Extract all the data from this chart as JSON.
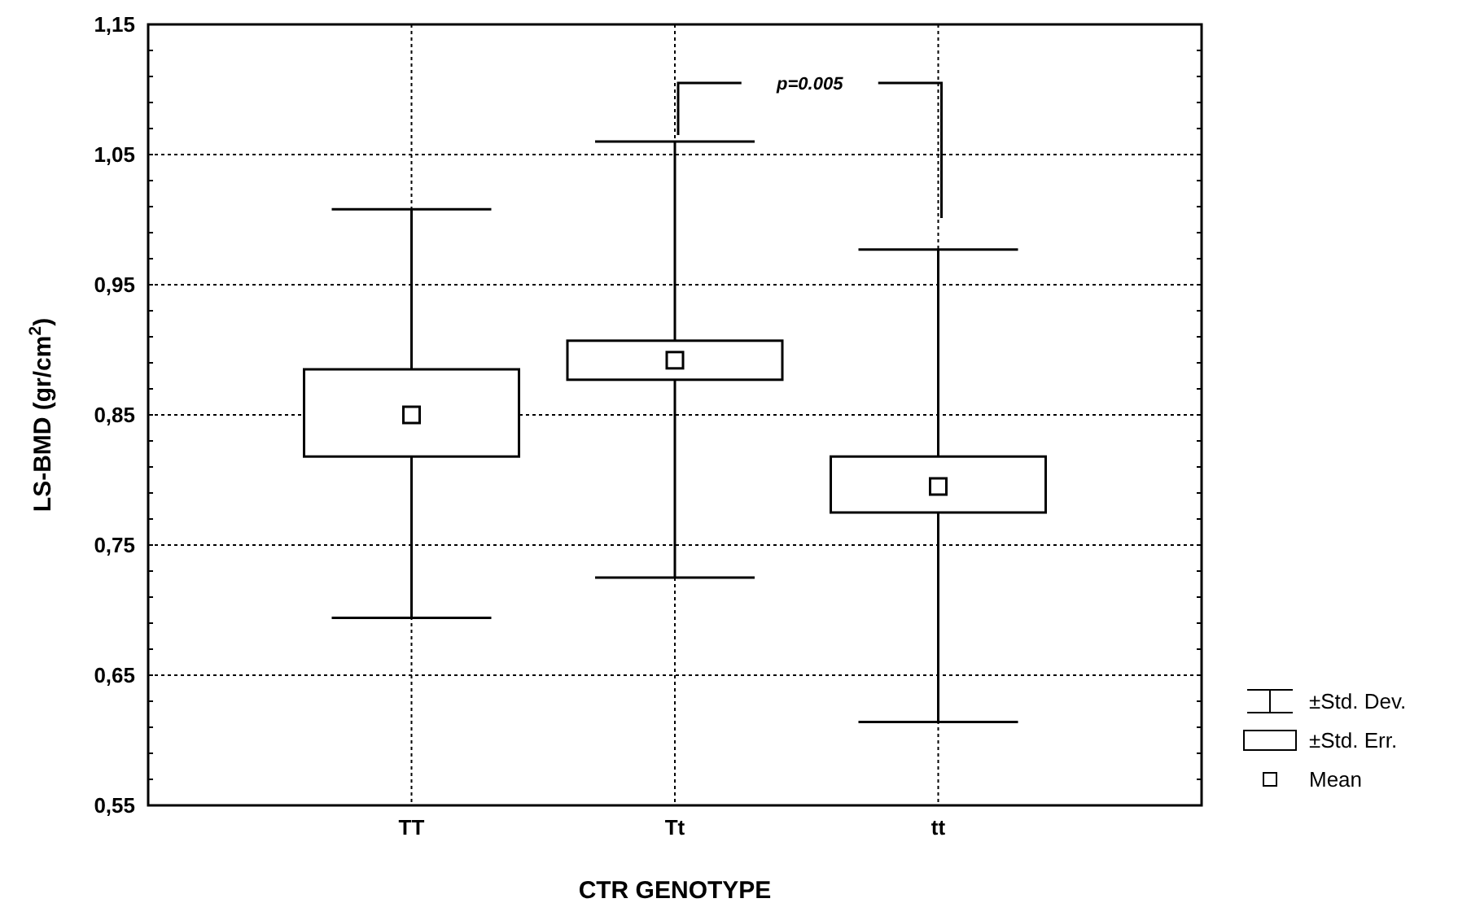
{
  "chart_data": {
    "type": "box",
    "xlabel": "CTR GENOTYPE",
    "ylabel": "LS-BMD (gr/cm$^{2}$)",
    "categories": [
      "TT",
      "Tt",
      "tt"
    ],
    "boxes": [
      {
        "low": 0.694,
        "q1": 0.818,
        "median": 0.85,
        "q3": 0.885,
        "high": 1.008
      },
      {
        "low": 0.725,
        "q1": 0.877,
        "median": 0.892,
        "q3": 0.907,
        "high": 1.06
      },
      {
        "low": 0.614,
        "q1": 0.775,
        "median": 0.795,
        "q3": 0.818,
        "high": 0.977
      }
    ],
    "ylim": [
      0.55,
      1.15
    ],
    "yticks": [
      {
        "value": 0.55,
        "label": "0,55"
      },
      {
        "value": 0.57,
        "label": null
      },
      {
        "value": 0.59,
        "label": null
      },
      {
        "value": 0.61,
        "label": null
      },
      {
        "value": 0.63,
        "label": null
      },
      {
        "value": 0.65,
        "label": "0,65"
      },
      {
        "value": 0.67,
        "label": null
      },
      {
        "value": 0.69,
        "label": null
      },
      {
        "value": 0.71,
        "label": null
      },
      {
        "value": 0.73,
        "label": null
      },
      {
        "value": 0.75,
        "label": "0,75"
      },
      {
        "value": 0.77,
        "label": null
      },
      {
        "value": 0.79,
        "label": null
      },
      {
        "value": 0.81,
        "label": null
      },
      {
        "value": 0.83,
        "label": null
      },
      {
        "value": 0.85,
        "label": "0,85"
      },
      {
        "value": 0.87,
        "label": null
      },
      {
        "value": 0.89,
        "label": null
      },
      {
        "value": 0.91,
        "label": null
      },
      {
        "value": 0.93,
        "label": null
      },
      {
        "value": 0.95,
        "label": "0,95"
      },
      {
        "value": 0.97,
        "label": null
      },
      {
        "value": 0.99,
        "label": null
      },
      {
        "value": 1.01,
        "label": null
      },
      {
        "value": 1.03,
        "label": null
      },
      {
        "value": 1.05,
        "label": "1,05"
      },
      {
        "value": 1.07,
        "label": null
      },
      {
        "value": 1.09,
        "label": null
      },
      {
        "value": 1.11,
        "label": null
      },
      {
        "value": 1.13,
        "label": null
      },
      {
        "value": 1.15,
        "label": "1,15"
      }
    ],
    "grid": true,
    "annotations": [
      "p=0.005",
      "±Std. Dev.",
      "±Std. Err.",
      "Mean"
    ]
  }
}
